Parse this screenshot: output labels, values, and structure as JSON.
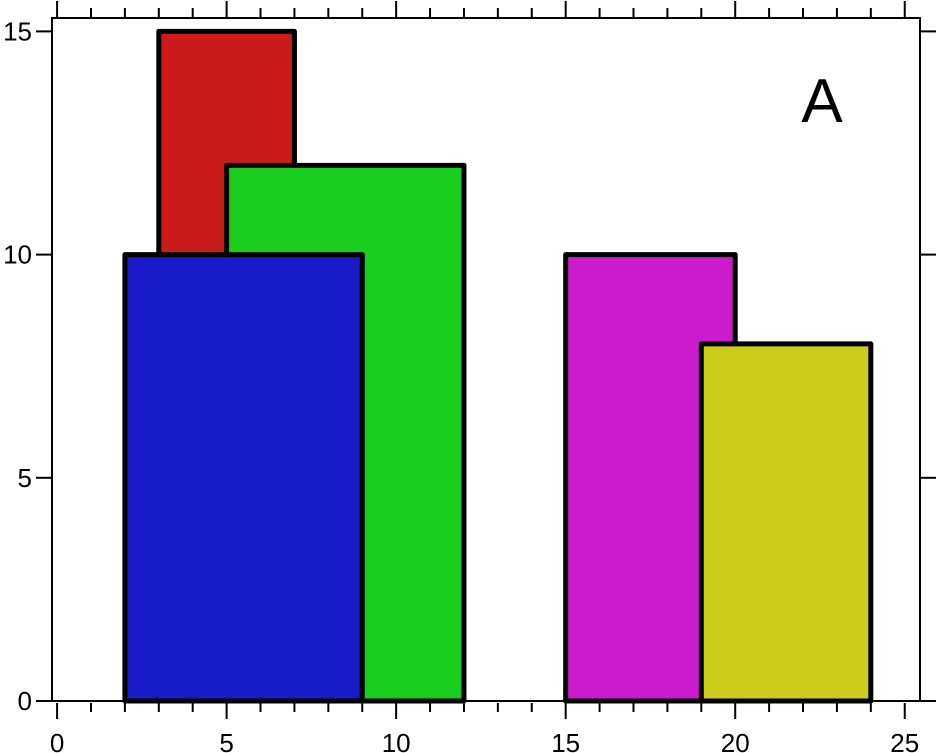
{
  "chart_data": {
    "type": "bar",
    "title": "",
    "xlabel": "",
    "ylabel": "",
    "annotation": "A",
    "xlim": [
      -0.15,
      25.45
    ],
    "ylim": [
      0,
      15.3
    ],
    "grid": false,
    "x_ticks": [
      0,
      5,
      10,
      15,
      20,
      25
    ],
    "x_minor_step": 1,
    "y_ticks": [
      0,
      5,
      10,
      15
    ],
    "rectangles": [
      {
        "x0": 3,
        "x1": 7,
        "y0": 0,
        "y1": 15,
        "color": "#cc1b1b"
      },
      {
        "x0": 5,
        "x1": 12,
        "y0": 0,
        "y1": 12,
        "color": "#19cc1d"
      },
      {
        "x0": 2,
        "x1": 9,
        "y0": 0,
        "y1": 10,
        "color": "#1a1bc8"
      },
      {
        "x0": 15,
        "x1": 20,
        "y0": 0,
        "y1": 10,
        "color": "#cc1bcc"
      },
      {
        "x0": 19,
        "x1": 24,
        "y0": 0,
        "y1": 8,
        "color": "#cccc1b"
      }
    ]
  }
}
